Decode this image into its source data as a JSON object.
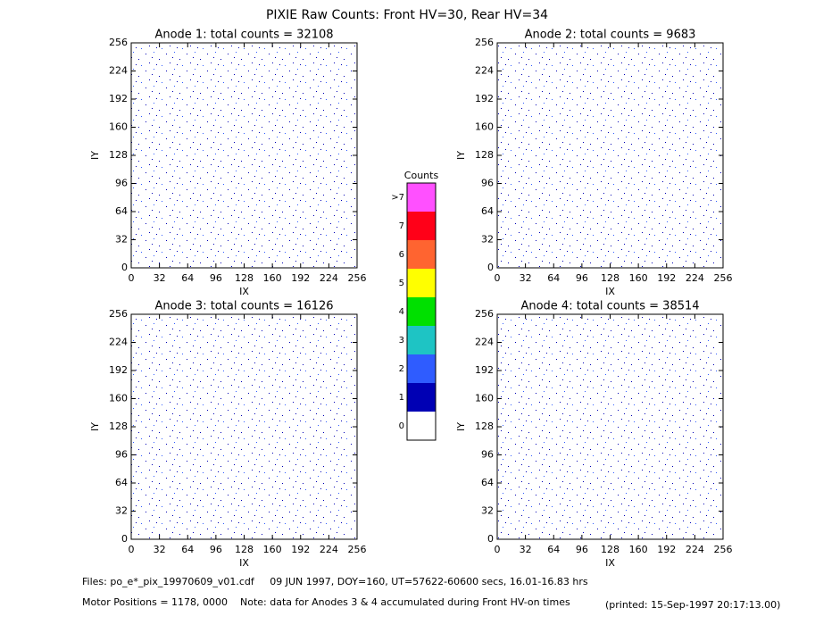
{
  "title": "PIXIE Raw Counts:  Front HV=30, Rear HV=34",
  "chart_data": [
    {
      "type": "heatmap",
      "title": "Anode 1: total counts = 32108",
      "x_label": "IX",
      "y_label": "IY",
      "xlim": [
        0,
        256
      ],
      "ylim": [
        0,
        256
      ],
      "xticks": [
        0,
        32,
        64,
        96,
        128,
        160,
        192,
        224,
        256
      ],
      "yticks": [
        0,
        32,
        64,
        96,
        128,
        160,
        192,
        224,
        256
      ]
    },
    {
      "type": "heatmap",
      "title": "Anode 2: total counts = 9683",
      "x_label": "IX",
      "y_label": "IY",
      "xlim": [
        0,
        256
      ],
      "ylim": [
        0,
        256
      ],
      "xticks": [
        0,
        32,
        64,
        96,
        128,
        160,
        192,
        224,
        256
      ],
      "yticks": [
        0,
        32,
        64,
        96,
        128,
        160,
        192,
        224,
        256
      ]
    },
    {
      "type": "heatmap",
      "title": "Anode 3: total counts = 16126",
      "x_label": "IX",
      "y_label": "IY",
      "xlim": [
        0,
        256
      ],
      "ylim": [
        0,
        256
      ],
      "xticks": [
        0,
        32,
        64,
        96,
        128,
        160,
        192,
        224,
        256
      ],
      "yticks": [
        0,
        32,
        64,
        96,
        128,
        160,
        192,
        224,
        256
      ]
    },
    {
      "type": "heatmap",
      "title": "Anode 4: total counts = 38514",
      "x_label": "IX",
      "y_label": "IY",
      "xlim": [
        0,
        256
      ],
      "ylim": [
        0,
        256
      ],
      "xticks": [
        0,
        32,
        64,
        96,
        128,
        160,
        192,
        224,
        256
      ],
      "yticks": [
        0,
        32,
        64,
        96,
        128,
        160,
        192,
        224,
        256
      ]
    }
  ],
  "colorbar": {
    "title": "Counts",
    "ticks": [
      0,
      1,
      2,
      3,
      4,
      5,
      6,
      7,
      {
        "value": 8,
        "label": ">7"
      }
    ],
    "colors": [
      "#ffffff",
      "#0000b4",
      "#2f5cff",
      "#1ec4c4",
      "#00e000",
      "#ffff00",
      "#ff6430",
      "#ff0018",
      "#ff50ff"
    ]
  },
  "footer": {
    "files": "Files: po_e*_pix_19970609_v01.cdf     09 JUN 1997, DOY=160, UT=57622-60600 secs, 16.01-16.83 hrs",
    "motor": "Motor Positions = 1178, 0000    Note: data for Anodes 3 & 4 accumulated during Front HV-on times",
    "printed": "(printed: 15-Sep-1997 20:17:13.00)"
  }
}
